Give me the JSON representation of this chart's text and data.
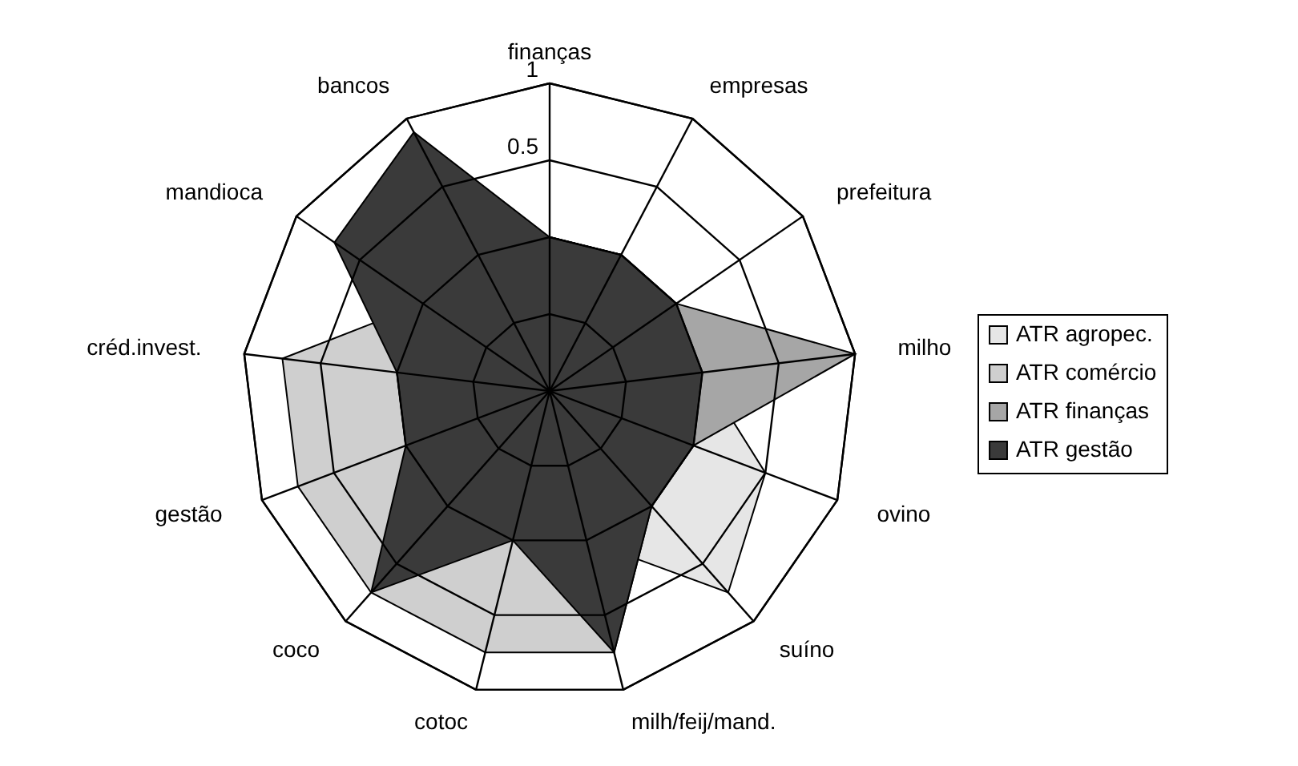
{
  "chart_data": {
    "type": "radar",
    "categories": [
      "finanças",
      "empresas",
      "prefeitura",
      "milho",
      "ovino",
      "suíno",
      "milh/feij/mand.",
      "cotoc",
      "coco",
      "gestão",
      "créd.invest.",
      "mandioca",
      "bancos"
    ],
    "ylim": [
      -1,
      1
    ],
    "yticks": [
      0.5,
      1
    ],
    "grid": true,
    "legend": "right",
    "series": [
      {
        "name": "ATR agropec.",
        "color": "#e6e6e6",
        "values": [
          0,
          0,
          0,
          0,
          0.5,
          0.75,
          0,
          0,
          0,
          0,
          0,
          0,
          0
        ]
      },
      {
        "name": "ATR comércio",
        "color": "#cfcfcf",
        "values": [
          0,
          0,
          0,
          0,
          0,
          0,
          0.75,
          0.75,
          0.75,
          0.75,
          0.75,
          0,
          0
        ]
      },
      {
        "name": "ATR finanças",
        "color": "#a6a6a6",
        "values": [
          0,
          0,
          0,
          1,
          0,
          0,
          0,
          0,
          0,
          0,
          0,
          0,
          0
        ]
      },
      {
        "name": "ATR gestão",
        "color": "#3a3a3a",
        "values": [
          0,
          0,
          0,
          0,
          0,
          0,
          0.75,
          0,
          0.75,
          0,
          0,
          0.7,
          0.9
        ]
      }
    ]
  }
}
